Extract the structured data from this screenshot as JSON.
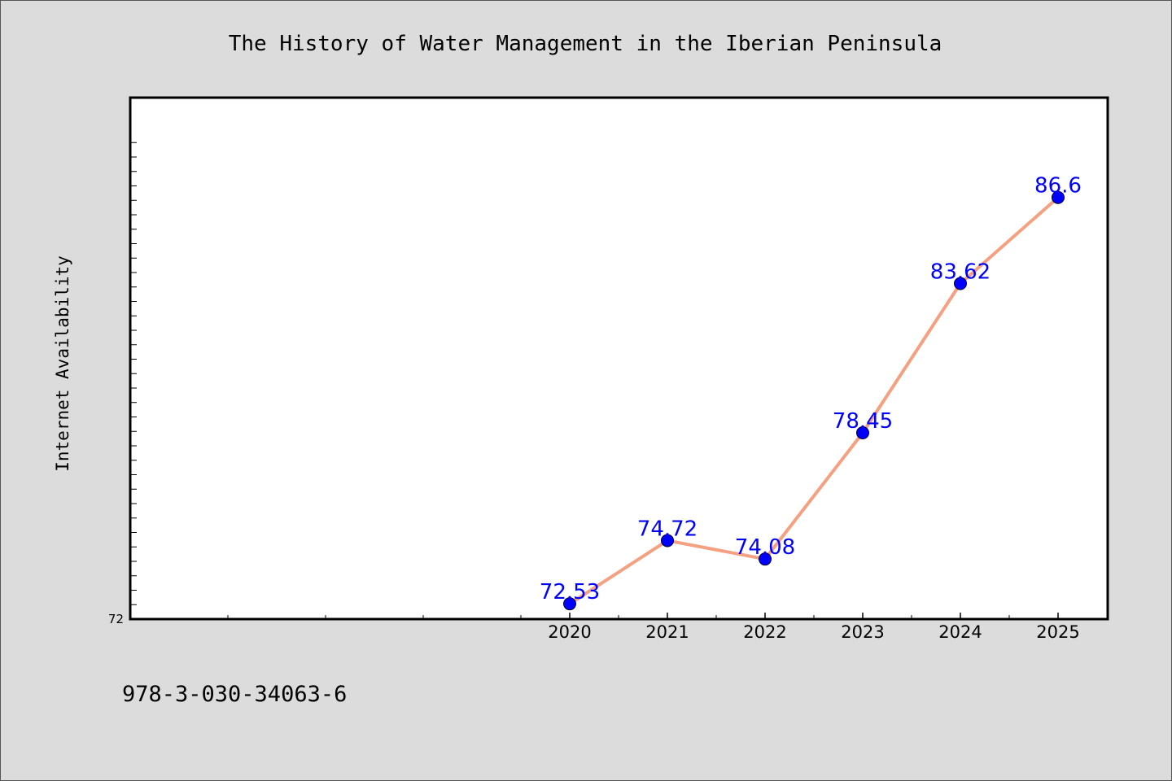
{
  "chart_data": {
    "type": "line",
    "title": "The History of Water Management in the Iberian Peninsula",
    "xlabel": "",
    "ylabel": "Internet Availability",
    "x": [
      "2020",
      "2021",
      "2022",
      "2023",
      "2024",
      "2025"
    ],
    "series": [
      {
        "values": [
          72.53,
          74.72,
          74.08,
          78.45,
          83.62,
          86.6
        ],
        "data_labels": [
          "72.53",
          "74.72",
          "74.08",
          "78.45",
          "83.62",
          "86.6"
        ]
      }
    ],
    "yticks_labeled": [
      "72"
    ],
    "ylim": [
      72,
      89
    ],
    "grid": false,
    "legend": "none",
    "colors": {
      "line": "#f5a080",
      "marker": "#0000ff",
      "data_label": "#0000ff",
      "background": "#dcdcdc",
      "plot_background": "#ffffff"
    }
  },
  "footer": {
    "isbn": "978-3-030-34063-6"
  }
}
